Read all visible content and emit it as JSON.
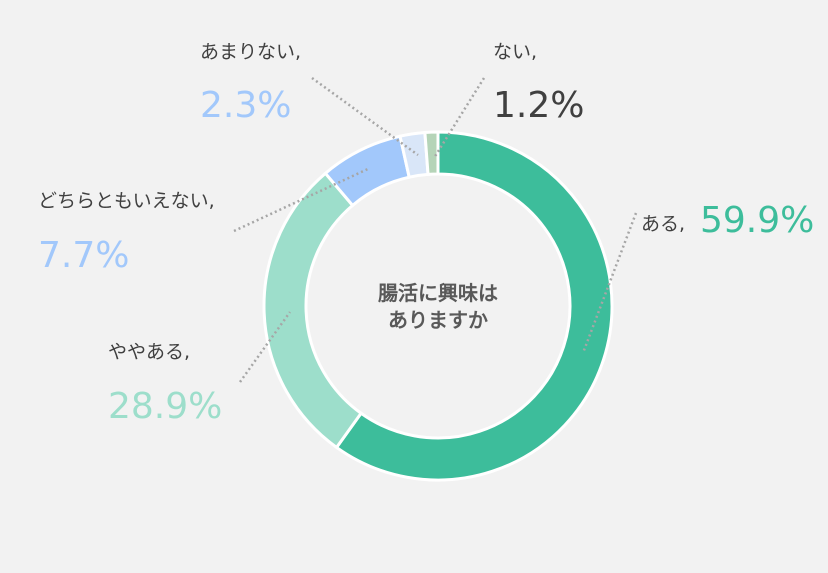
{
  "chart_data": {
    "type": "pie",
    "variant": "donut",
    "title": "",
    "center_text": [
      "腸活に興味は",
      "ありますか"
    ],
    "slices": [
      {
        "label": "ある,",
        "value": 59.9,
        "value_text": "59.9%",
        "color": "#3dbd9b"
      },
      {
        "label": "ややある,",
        "value": 28.9,
        "value_text": "28.9%",
        "color": "#9ddecb"
      },
      {
        "label": "どちらともいえない,",
        "value": 7.7,
        "value_text": "7.7%",
        "color": "#a2c8fb"
      },
      {
        "label": "あまりない,",
        "value": 2.3,
        "value_text": "2.3%",
        "color": "#d9e6f8"
      },
      {
        "label": "ない,",
        "value": 1.2,
        "value_text": "1.2%",
        "color": "#b5d4b8"
      }
    ],
    "value_label_colors": [
      "#3dbd9b",
      "#9ddecb",
      "#a2c8fb",
      "#a2c8fb",
      "#404040"
    ],
    "leader_line_color": "#a6a6a6",
    "start_angle": "top",
    "direction": "clockwise"
  }
}
